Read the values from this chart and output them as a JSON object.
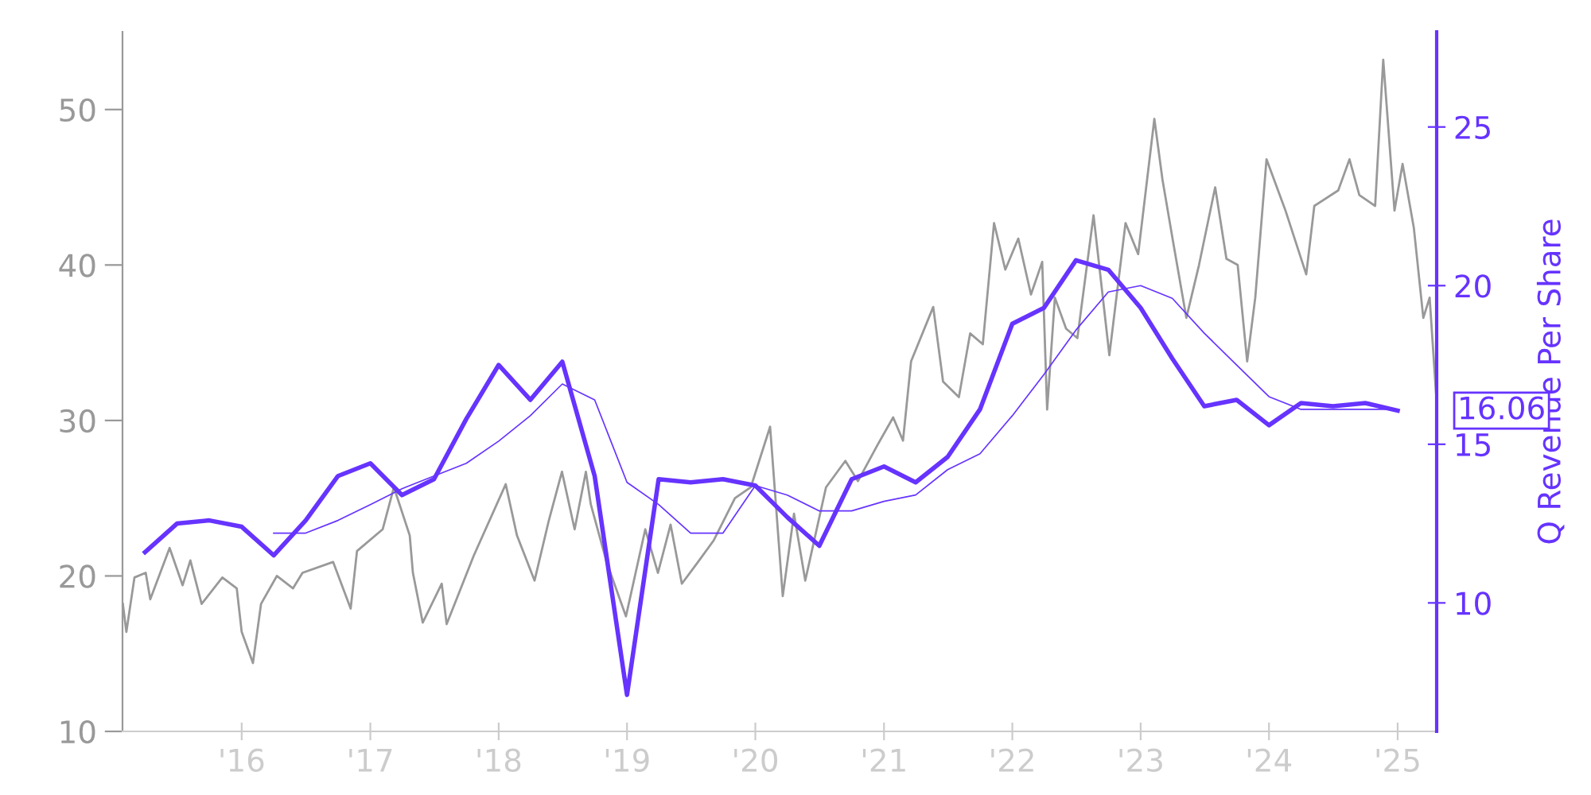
{
  "chart_data": {
    "type": "line",
    "y2label": "Q Revenue Per Share",
    "xlim": [
      "2015-01-27",
      "2025-04-22"
    ],
    "xticks": [
      {
        "value": "2016-01-01",
        "label": "'16"
      },
      {
        "value": "2017-01-01",
        "label": "'17"
      },
      {
        "value": "2018-01-01",
        "label": "'18"
      },
      {
        "value": "2019-01-01",
        "label": "'19"
      },
      {
        "value": "2020-01-01",
        "label": "'20"
      },
      {
        "value": "2021-01-01",
        "label": "'21"
      },
      {
        "value": "2022-01-01",
        "label": "'22"
      },
      {
        "value": "2023-01-01",
        "label": "'23"
      },
      {
        "value": "2024-01-01",
        "label": "'24"
      },
      {
        "value": "2025-01-01",
        "label": "'25"
      }
    ],
    "ylim": [
      10,
      55
    ],
    "yticks": [
      10,
      20,
      30,
      40,
      50
    ],
    "y2lim": [
      5.95,
      28
    ],
    "y2ticks": [
      10,
      15,
      20,
      25
    ],
    "grid": false,
    "legend": false,
    "marker": "none",
    "line_style": "solid",
    "annotations": [
      "16.06"
    ],
    "series": [
      {
        "color": "#999999",
        "x": [
          "2015-01-28",
          "2015-02-07",
          "2015-03-02",
          "2015-04-03",
          "2015-04-16",
          "2015-06-10",
          "2015-07-17",
          "2015-08-08",
          "2015-09-09",
          "2015-11-07",
          "2015-12-18",
          "2016-01-01",
          "2016-02-02",
          "2016-02-25",
          "2016-04-10",
          "2016-05-26",
          "2016-06-22",
          "2016-09-17",
          "2016-11-06",
          "2016-11-24",
          "2017-02-05",
          "2017-03-09",
          "2017-04-23",
          "2017-05-02",
          "2017-05-30",
          "2017-07-23",
          "2017-08-06",
          "2017-10-22",
          "2018-01-21",
          "2018-02-22",
          "2018-04-13",
          "2018-05-24",
          "2018-06-30",
          "2018-08-05",
          "2018-09-06",
          "2018-09-20",
          "2018-11-04",
          "2018-12-29",
          "2019-02-22",
          "2019-03-30",
          "2019-05-05",
          "2019-06-06",
          "2019-07-22",
          "2019-09-05",
          "2019-11-04",
          "2019-12-19",
          "2020-02-12",
          "2020-03-19",
          "2020-04-20",
          "2020-05-22",
          "2020-07-20",
          "2020-09-13",
          "2020-10-19",
          "2020-12-13",
          "2021-01-27",
          "2021-02-24",
          "2021-03-19",
          "2021-05-21",
          "2021-06-18",
          "2021-08-02",
          "2021-09-03",
          "2021-10-09",
          "2021-11-10",
          "2021-12-12",
          "2022-01-18",
          "2022-02-23",
          "2022-03-27",
          "2022-04-10",
          "2022-05-02",
          "2022-06-03",
          "2022-07-05",
          "2022-08-20",
          "2022-10-04",
          "2022-11-19",
          "2022-12-25",
          "2023-02-09",
          "2023-03-04",
          "2023-04-04",
          "2023-05-11",
          "2023-06-16",
          "2023-08-01",
          "2023-09-02",
          "2023-10-04",
          "2023-10-31",
          "2023-11-23",
          "2023-12-25",
          "2024-02-17",
          "2024-04-16",
          "2024-05-09",
          "2024-07-16",
          "2024-08-17",
          "2024-09-14",
          "2024-10-29",
          "2024-11-21",
          "2024-12-23",
          "2025-01-15",
          "2025-02-16",
          "2025-03-15",
          "2025-04-02",
          "2025-04-20"
        ],
        "values": [
          18.2,
          16.4,
          19.9,
          20.2,
          18.5,
          21.8,
          19.4,
          21.0,
          18.2,
          19.9,
          19.2,
          16.4,
          14.4,
          18.2,
          20.0,
          19.2,
          20.2,
          20.9,
          17.9,
          21.6,
          23.0,
          25.7,
          22.6,
          20.2,
          17.0,
          19.5,
          16.9,
          21.3,
          25.9,
          22.6,
          19.7,
          23.6,
          26.7,
          23.0,
          26.7,
          24.6,
          20.9,
          17.4,
          23.0,
          20.2,
          23.3,
          19.5,
          20.9,
          22.3,
          25.0,
          25.7,
          29.6,
          18.7,
          24.0,
          19.7,
          25.7,
          27.4,
          26.1,
          28.4,
          30.2,
          28.7,
          33.8,
          37.3,
          32.5,
          31.5,
          35.6,
          34.9,
          42.7,
          39.7,
          41.7,
          38.1,
          40.2,
          30.7,
          37.9,
          35.9,
          35.3,
          43.2,
          34.2,
          42.7,
          40.7,
          49.4,
          45.5,
          41.4,
          36.6,
          40.0,
          45.0,
          40.4,
          40.0,
          33.8,
          37.9,
          46.8,
          43.5,
          39.4,
          43.8,
          44.8,
          46.8,
          44.5,
          43.8,
          53.2,
          43.5,
          46.5,
          42.4,
          36.6,
          37.9,
          31.8
        ]
      },
      {
        "color": "#6633ff",
        "axis": "y2",
        "x": [
          "2015-04-01",
          "2015-07-01",
          "2015-10-01",
          "2016-01-01",
          "2016-04-01",
          "2016-07-01",
          "2016-10-01",
          "2017-01-01",
          "2017-04-01",
          "2017-07-01",
          "2017-10-01",
          "2018-01-01",
          "2018-04-01",
          "2018-07-01",
          "2018-10-01",
          "2019-01-01",
          "2019-04-01",
          "2019-07-01",
          "2019-10-01",
          "2020-01-01",
          "2020-04-01",
          "2020-07-01",
          "2020-10-01",
          "2021-01-01",
          "2021-04-01",
          "2021-07-01",
          "2021-10-01",
          "2022-01-01",
          "2022-04-01",
          "2022-07-01",
          "2022-10-01",
          "2023-01-01",
          "2023-04-01",
          "2023-07-01",
          "2023-10-01",
          "2024-01-01",
          "2024-04-01",
          "2024-07-01",
          "2024-10-01",
          "2025-01-01"
        ],
        "values": [
          11.6,
          12.5,
          12.6,
          12.4,
          11.5,
          12.6,
          14.0,
          14.4,
          13.4,
          13.9,
          15.8,
          17.5,
          16.4,
          17.6,
          14.0,
          7.1,
          13.9,
          13.8,
          13.9,
          13.7,
          12.7,
          11.8,
          13.9,
          14.3,
          13.8,
          14.6,
          16.1,
          18.8,
          19.3,
          20.8,
          20.5,
          19.3,
          17.7,
          16.2,
          16.4,
          15.6,
          16.3,
          16.2,
          16.3,
          16.06
        ]
      },
      {
        "color": "#6633ff",
        "axis": "y2",
        "x": [
          "2016-04-01",
          "2016-07-01",
          "2016-10-01",
          "2017-01-01",
          "2017-04-01",
          "2017-07-01",
          "2017-10-01",
          "2018-01-01",
          "2018-04-01",
          "2018-07-01",
          "2018-10-01",
          "2019-01-01",
          "2019-04-01",
          "2019-07-01",
          "2019-10-01",
          "2020-01-01",
          "2020-04-01",
          "2020-07-01",
          "2020-10-01",
          "2021-01-01",
          "2021-04-01",
          "2021-07-01",
          "2021-10-01",
          "2022-01-01",
          "2022-04-01",
          "2022-07-01",
          "2022-10-01",
          "2023-01-01",
          "2023-04-01",
          "2023-07-01",
          "2023-10-01",
          "2024-01-01",
          "2024-04-01",
          "2024-07-01",
          "2024-10-01",
          "2025-01-01"
        ],
        "values": [
          12.2,
          12.2,
          12.6,
          13.1,
          13.6,
          14.0,
          14.4,
          15.1,
          15.9,
          16.9,
          16.4,
          13.8,
          13.1,
          12.2,
          12.2,
          13.7,
          13.4,
          12.9,
          12.9,
          13.2,
          13.4,
          14.2,
          14.7,
          15.9,
          17.2,
          18.6,
          19.8,
          20.0,
          19.6,
          18.5,
          17.5,
          16.5,
          16.1,
          16.1,
          16.1,
          16.1
        ]
      }
    ]
  }
}
